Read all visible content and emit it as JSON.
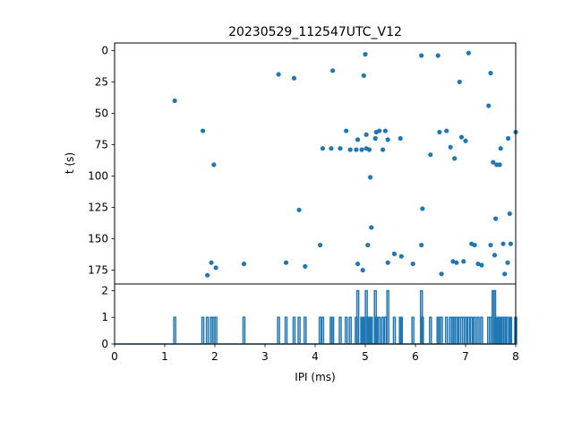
{
  "chart_data": [
    {
      "type": "scatter",
      "title": "20230529_112547UTC_V12",
      "xlabel": "",
      "ylabel": "t (s)",
      "xlim": [
        0,
        8
      ],
      "ylim": [
        186,
        -6
      ],
      "y_inverted": true,
      "yticks": [
        0,
        25,
        50,
        75,
        100,
        125,
        150,
        175
      ],
      "color": "#1f77b4",
      "points": [
        [
          1.2,
          40
        ],
        [
          1.76,
          64
        ],
        [
          1.98,
          91
        ],
        [
          1.85,
          179
        ],
        [
          1.93,
          169
        ],
        [
          2.02,
          173
        ],
        [
          2.58,
          170
        ],
        [
          3.27,
          19
        ],
        [
          3.58,
          22
        ],
        [
          3.68,
          127
        ],
        [
          3.42,
          169
        ],
        [
          3.8,
          172
        ],
        [
          4.35,
          16
        ],
        [
          4.1,
          155
        ],
        [
          4.15,
          78
        ],
        [
          4.32,
          78
        ],
        [
          4.5,
          78
        ],
        [
          4.62,
          64
        ],
        [
          4.7,
          79
        ],
        [
          4.82,
          79
        ],
        [
          4.85,
          71
        ],
        [
          4.85,
          170
        ],
        [
          4.93,
          79
        ],
        [
          4.95,
          175
        ],
        [
          4.97,
          20
        ],
        [
          5.0,
          3
        ],
        [
          5.02,
          67
        ],
        [
          5.05,
          155
        ],
        [
          5.08,
          79
        ],
        [
          5.02,
          78
        ],
        [
          5.1,
          101
        ],
        [
          5.12,
          141
        ],
        [
          5.2,
          70
        ],
        [
          5.22,
          65
        ],
        [
          5.28,
          64
        ],
        [
          5.35,
          79
        ],
        [
          5.4,
          64
        ],
        [
          5.45,
          71
        ],
        [
          5.45,
          169
        ],
        [
          5.58,
          162
        ],
        [
          5.7,
          70
        ],
        [
          5.72,
          164
        ],
        [
          5.95,
          170
        ],
        [
          6.12,
          4
        ],
        [
          6.12,
          155
        ],
        [
          6.14,
          126
        ],
        [
          6.3,
          83
        ],
        [
          6.45,
          4
        ],
        [
          6.48,
          65
        ],
        [
          6.52,
          178
        ],
        [
          6.62,
          64
        ],
        [
          6.7,
          77
        ],
        [
          6.75,
          168
        ],
        [
          6.78,
          86
        ],
        [
          6.82,
          169
        ],
        [
          6.88,
          25
        ],
        [
          6.92,
          69
        ],
        [
          6.96,
          168
        ],
        [
          7.0,
          72
        ],
        [
          7.06,
          2
        ],
        [
          7.12,
          154
        ],
        [
          7.18,
          155
        ],
        [
          7.25,
          170
        ],
        [
          7.32,
          171
        ],
        [
          7.46,
          44
        ],
        [
          7.5,
          18
        ],
        [
          7.5,
          155
        ],
        [
          7.55,
          89
        ],
        [
          7.58,
          163
        ],
        [
          7.6,
          134
        ],
        [
          7.62,
          91
        ],
        [
          7.68,
          91
        ],
        [
          7.7,
          78
        ],
        [
          7.75,
          154
        ],
        [
          7.78,
          178
        ],
        [
          7.85,
          70
        ],
        [
          7.84,
          169
        ],
        [
          7.88,
          130
        ],
        [
          7.9,
          154
        ],
        [
          8.0,
          65
        ]
      ]
    },
    {
      "type": "line",
      "title": "",
      "xlabel": "IPI (ms)",
      "ylabel": "",
      "xlim": [
        0,
        8
      ],
      "ylim": [
        0,
        2.25
      ],
      "xticks": [
        0,
        1,
        2,
        3,
        4,
        5,
        6,
        7,
        8
      ],
      "yticks": [
        0,
        1,
        2
      ],
      "color": "#1f77b4",
      "spikes": [
        [
          1.2,
          1
        ],
        [
          1.76,
          1
        ],
        [
          1.85,
          1
        ],
        [
          1.93,
          1
        ],
        [
          1.98,
          1
        ],
        [
          2.02,
          1
        ],
        [
          2.58,
          1
        ],
        [
          3.27,
          1
        ],
        [
          3.42,
          1
        ],
        [
          3.58,
          1
        ],
        [
          3.68,
          1
        ],
        [
          3.8,
          1
        ],
        [
          4.1,
          1
        ],
        [
          4.15,
          1
        ],
        [
          4.32,
          1
        ],
        [
          4.35,
          1
        ],
        [
          4.5,
          1
        ],
        [
          4.62,
          1
        ],
        [
          4.7,
          1
        ],
        [
          4.82,
          1
        ],
        [
          4.85,
          2
        ],
        [
          4.93,
          1
        ],
        [
          4.95,
          1
        ],
        [
          4.97,
          1
        ],
        [
          5.02,
          2
        ],
        [
          5.05,
          1
        ],
        [
          5.08,
          1
        ],
        [
          5.1,
          1
        ],
        [
          5.12,
          1
        ],
        [
          5.2,
          2
        ],
        [
          5.22,
          1
        ],
        [
          5.28,
          1
        ],
        [
          5.35,
          1
        ],
        [
          5.4,
          1
        ],
        [
          5.45,
          2
        ],
        [
          5.58,
          1
        ],
        [
          5.7,
          1
        ],
        [
          5.72,
          1
        ],
        [
          5.95,
          1
        ],
        [
          6.12,
          2
        ],
        [
          6.14,
          1
        ],
        [
          6.3,
          1
        ],
        [
          6.45,
          1
        ],
        [
          6.48,
          1
        ],
        [
          6.52,
          1
        ],
        [
          6.62,
          1
        ],
        [
          6.7,
          1
        ],
        [
          6.75,
          1
        ],
        [
          6.78,
          1
        ],
        [
          6.82,
          1
        ],
        [
          6.88,
          1
        ],
        [
          6.92,
          1
        ],
        [
          6.96,
          1
        ],
        [
          7.0,
          1
        ],
        [
          7.06,
          1
        ],
        [
          7.12,
          1
        ],
        [
          7.18,
          1
        ],
        [
          7.25,
          1
        ],
        [
          7.32,
          1
        ],
        [
          7.46,
          1
        ],
        [
          7.5,
          1
        ],
        [
          7.55,
          2
        ],
        [
          7.58,
          2
        ],
        [
          7.6,
          1
        ],
        [
          7.62,
          1
        ],
        [
          7.68,
          1
        ],
        [
          7.7,
          1
        ],
        [
          7.75,
          1
        ],
        [
          7.78,
          1
        ],
        [
          7.84,
          1
        ],
        [
          7.88,
          1
        ],
        [
          7.9,
          1
        ],
        [
          8.0,
          1
        ]
      ]
    }
  ]
}
